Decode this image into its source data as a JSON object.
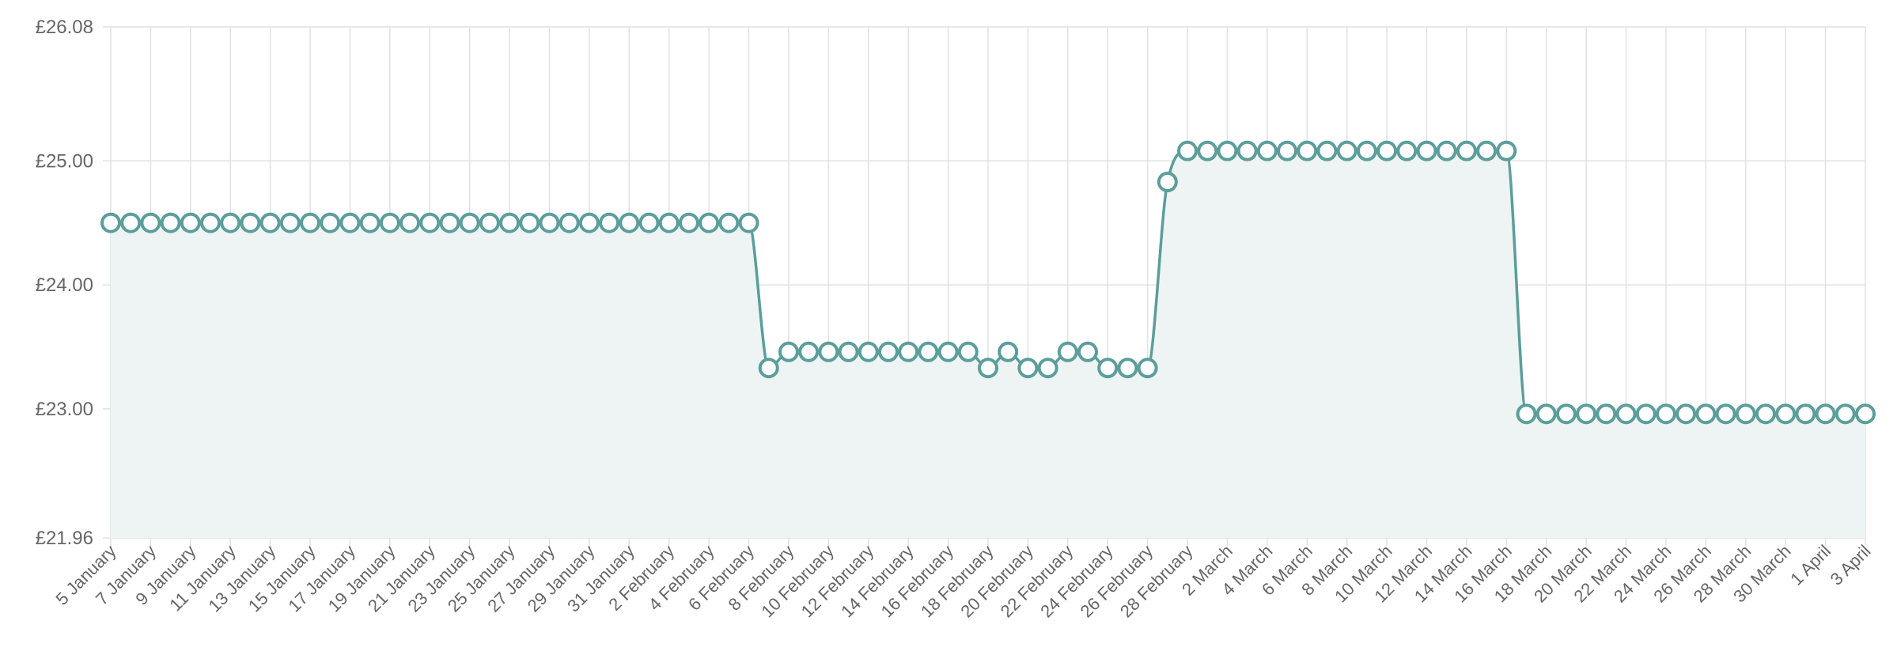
{
  "chart_data": {
    "type": "line",
    "fill": "area",
    "x": [
      "5 January",
      "6 January",
      "7 January",
      "8 January",
      "9 January",
      "10 January",
      "11 January",
      "12 January",
      "13 January",
      "14 January",
      "15 January",
      "16 January",
      "17 January",
      "18 January",
      "19 January",
      "20 January",
      "21 January",
      "22 January",
      "23 January",
      "24 January",
      "25 January",
      "26 January",
      "27 January",
      "28 January",
      "29 January",
      "30 January",
      "31 January",
      "1 February",
      "2 February",
      "3 February",
      "4 February",
      "5 February",
      "6 February",
      "7 February",
      "8 February",
      "9 February",
      "10 February",
      "11 February",
      "12 February",
      "13 February",
      "14 February",
      "15 February",
      "16 February",
      "17 February",
      "18 February",
      "19 February",
      "20 February",
      "21 February",
      "22 February",
      "23 February",
      "24 February",
      "25 February",
      "26 February",
      "27 February",
      "28 February",
      "1 March",
      "2 March",
      "3 March",
      "4 March",
      "5 March",
      "6 March",
      "7 March",
      "8 March",
      "9 March",
      "10 March",
      "11 March",
      "12 March",
      "13 March",
      "14 March",
      "15 March",
      "16 March",
      "17 March",
      "18 March",
      "19 March",
      "20 March",
      "21 March",
      "22 March",
      "23 March",
      "24 March",
      "25 March",
      "26 March",
      "27 March",
      "28 March",
      "29 March",
      "30 March",
      "31 March",
      "1 April",
      "2 April",
      "3 April"
    ],
    "x_tick_labels": [
      "5 January",
      "7 January",
      "9 January",
      "11 January",
      "13 January",
      "15 January",
      "17 January",
      "19 January",
      "21 January",
      "23 January",
      "25 January",
      "27 January",
      "29 January",
      "31 January",
      "2 February",
      "4 February",
      "6 February",
      "8 February",
      "10 February",
      "12 February",
      "14 February",
      "16 February",
      "18 February",
      "20 February",
      "22 February",
      "24 February",
      "26 February",
      "28 February",
      "2 March",
      "4 March",
      "6 March",
      "8 March",
      "10 March",
      "12 March",
      "14 March",
      "16 March",
      "18 March",
      "20 March",
      "22 March",
      "24 March",
      "26 March",
      "28 March",
      "30 March",
      "1 April",
      "3 April"
    ],
    "series": [
      {
        "values": [
          24.5,
          24.5,
          24.5,
          24.5,
          24.5,
          24.5,
          24.5,
          24.5,
          24.5,
          24.5,
          24.5,
          24.5,
          24.5,
          24.5,
          24.5,
          24.5,
          24.5,
          24.5,
          24.5,
          24.5,
          24.5,
          24.5,
          24.5,
          24.5,
          24.5,
          24.5,
          24.5,
          24.5,
          24.5,
          24.5,
          24.5,
          24.5,
          24.5,
          23.33,
          23.46,
          23.46,
          23.46,
          23.46,
          23.46,
          23.46,
          23.46,
          23.46,
          23.46,
          23.46,
          23.33,
          23.46,
          23.33,
          23.33,
          23.46,
          23.46,
          23.33,
          23.33,
          23.33,
          24.83,
          25.08,
          25.08,
          25.08,
          25.08,
          25.08,
          25.08,
          25.08,
          25.08,
          25.08,
          25.08,
          25.08,
          25.08,
          25.08,
          25.08,
          25.08,
          25.08,
          25.08,
          22.96,
          22.96,
          22.96,
          22.96,
          22.96,
          22.96,
          22.96,
          22.96,
          22.96,
          22.96,
          22.96,
          22.96,
          22.96,
          22.96,
          22.96,
          22.96,
          22.96,
          22.96
        ]
      }
    ],
    "y_ticks": [
      "£26.08",
      "£25.00",
      "£24.00",
      "£23.00",
      "£21.96"
    ],
    "y_tick_values": [
      26.08,
      25.0,
      24.0,
      23.0,
      21.96
    ],
    "ylim": [
      21.96,
      26.08
    ],
    "grid": true,
    "line_color": "#5b9e9b",
    "fill_color": "#eef4f3",
    "title": "",
    "xlabel": "",
    "ylabel": ""
  }
}
